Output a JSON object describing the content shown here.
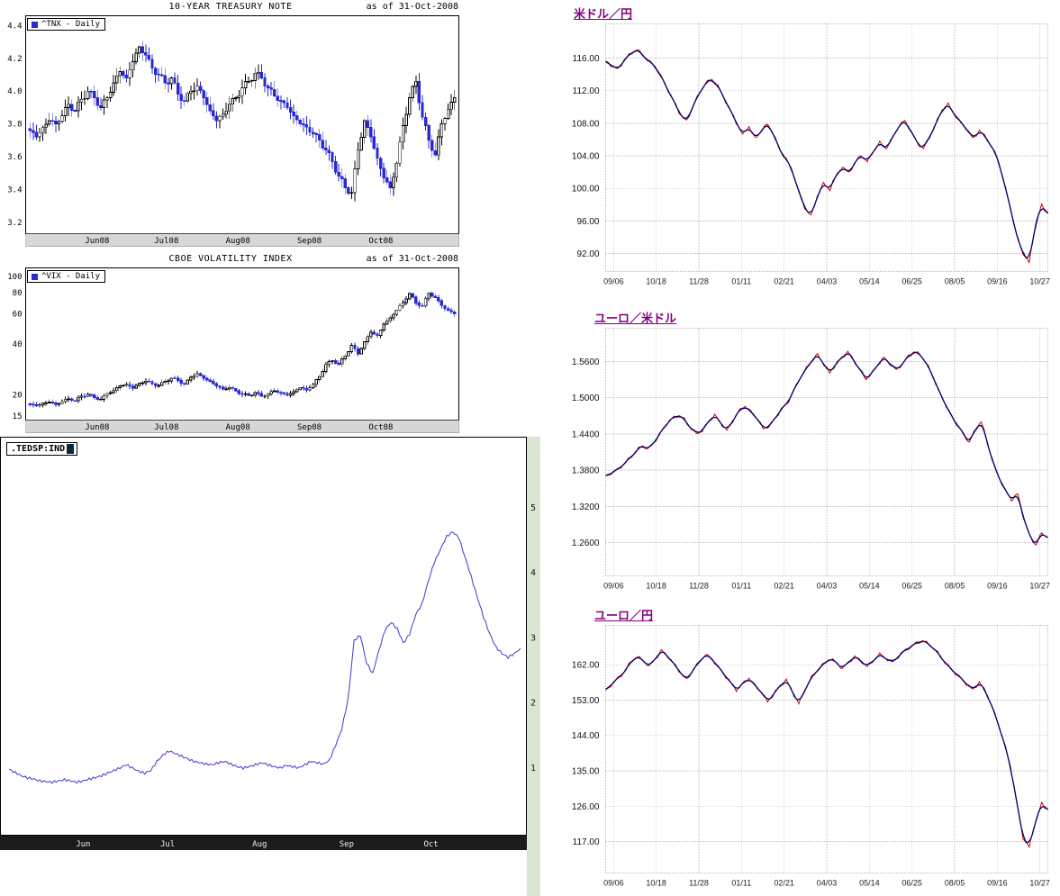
{
  "chart_data": [
    {
      "id": "tnx",
      "type": "candlestick",
      "title": "10-YEAR TREASURY NOTE",
      "as_of": "as of 31-Oct-2008",
      "legend": "^TNX - Daily",
      "scale": "linear",
      "up_color": "#ffffff",
      "down_color": "#2a2ad0",
      "ylim": [
        3.13,
        4.46
      ],
      "yticks": [
        "4.4",
        "4.2",
        "4.0",
        "3.8",
        "3.6",
        "3.4",
        "3.2"
      ],
      "ytick_vals": [
        4.4,
        4.2,
        4.0,
        3.8,
        3.6,
        3.4,
        3.2
      ],
      "xticks": [
        {
          "label": "Jun08",
          "f": 0.165
        },
        {
          "label": "Jul08",
          "f": 0.325
        },
        {
          "label": "Aug08",
          "f": 0.49
        },
        {
          "label": "Sep08",
          "f": 0.655
        },
        {
          "label": "Oct08",
          "f": 0.82
        }
      ],
      "wick": 0.045,
      "closes": [
        3.76,
        3.72,
        3.78,
        3.82,
        3.8,
        3.85,
        3.92,
        3.88,
        3.95,
        4.0,
        3.96,
        3.9,
        3.96,
        4.05,
        4.12,
        4.08,
        4.18,
        4.27,
        4.22,
        4.14,
        4.1,
        4.05,
        4.08,
        3.98,
        3.94,
        4.0,
        4.03,
        3.96,
        3.88,
        3.82,
        3.86,
        3.92,
        3.96,
        4.02,
        4.06,
        4.11,
        4.08,
        4.02,
        3.97,
        3.94,
        3.9,
        3.85,
        3.8,
        3.78,
        3.74,
        3.7,
        3.64,
        3.57,
        3.48,
        3.41,
        3.38,
        3.64,
        3.82,
        3.72,
        3.59,
        3.47,
        3.41,
        3.56,
        3.79,
        3.96,
        4.06,
        3.84,
        3.7,
        3.61,
        3.8,
        3.89,
        3.96
      ]
    },
    {
      "id": "vix",
      "type": "candlestick",
      "title": "CBOE VOLATILITY INDEX",
      "as_of": "as of 31-Oct-2008",
      "legend": "^VIX - Daily",
      "scale": "log",
      "up_color": "#ffffff",
      "down_color": "#2a2ad0",
      "ylim": [
        14.2,
        112
      ],
      "yticks": [
        "100",
        "80",
        "60",
        "40",
        "20",
        "15"
      ],
      "ytick_vals": [
        100,
        80,
        60,
        40,
        20,
        15
      ],
      "xticks": [
        {
          "label": "Jun08",
          "f": 0.165
        },
        {
          "label": "Jul08",
          "f": 0.325
        },
        {
          "label": "Aug08",
          "f": 0.49
        },
        {
          "label": "Sep08",
          "f": 0.655
        },
        {
          "label": "Oct08",
          "f": 0.82
        }
      ],
      "wick": 0.035,
      "closes": [
        17.6,
        17.2,
        17.9,
        18.1,
        17.6,
        18.3,
        19.0,
        18.5,
        19.6,
        20.1,
        19.3,
        18.8,
        20.4,
        21.2,
        22.6,
        23.1,
        21.9,
        23.4,
        24.1,
        23.3,
        22.7,
        24.0,
        25.1,
        24.3,
        23.1,
        25.4,
        26.6,
        25.1,
        24.0,
        22.6,
        21.6,
        22.1,
        21.1,
        20.1,
        19.8,
        20.6,
        19.6,
        20.3,
        21.1,
        20.6,
        19.9,
        20.9,
        22.1,
        21.4,
        23.1,
        25.6,
        30.2,
        31.8,
        30.4,
        33.9,
        39.2,
        34.8,
        41.1,
        46.7,
        44.8,
        52.1,
        56.8,
        63.2,
        69.9,
        79.1,
        69.6,
        66.8,
        79.8,
        74.9,
        67.2,
        62.8,
        59.9
      ]
    },
    {
      "id": "tedspread",
      "type": "line",
      "symbol_label": ".TEDSP:IND",
      "line_color": "#3a3ad6",
      "ylim": [
        0,
        5.9
      ],
      "yticks": [
        "5",
        "4",
        "3",
        "2",
        "1"
      ],
      "ytick_vals": [
        5,
        4,
        3,
        2,
        1
      ],
      "xticks": [
        {
          "label": "Jun",
          "f": 0.145
        },
        {
          "label": "Jul",
          "f": 0.31
        },
        {
          "label": "Aug",
          "f": 0.49
        },
        {
          "label": "Sep",
          "f": 0.66
        },
        {
          "label": "Oct",
          "f": 0.825
        }
      ],
      "values": [
        0.98,
        0.93,
        0.88,
        0.85,
        0.83,
        0.8,
        0.79,
        0.78,
        0.8,
        0.82,
        0.8,
        0.78,
        0.8,
        0.83,
        0.85,
        0.88,
        0.92,
        0.96,
        1.0,
        1.05,
        1.0,
        0.95,
        0.92,
        0.96,
        1.1,
        1.2,
        1.26,
        1.22,
        1.18,
        1.14,
        1.1,
        1.08,
        1.06,
        1.05,
        1.08,
        1.1,
        1.06,
        1.02,
        1.0,
        1.02,
        1.05,
        1.08,
        1.05,
        1.02,
        1.0,
        1.04,
        1.02,
        1.0,
        1.05,
        1.1,
        1.08,
        1.06,
        1.12,
        1.35,
        1.6,
        2.05,
        2.96,
        3.04,
        2.62,
        2.45,
        2.8,
        3.12,
        3.24,
        3.14,
        2.92,
        3.06,
        3.36,
        3.52,
        3.86,
        4.16,
        4.36,
        4.56,
        4.63,
        4.54,
        4.24,
        3.94,
        3.62,
        3.32,
        3.06,
        2.86,
        2.76,
        2.7,
        2.76,
        2.84
      ]
    },
    {
      "id": "usdjpy",
      "type": "line",
      "title": "米ドル／円",
      "title_color": "#800080",
      "series_colors": {
        "price": "#d40000",
        "average": "#000070"
      },
      "ylim": [
        89.8,
        120.2
      ],
      "yticks": [
        "116.00",
        "112.00",
        "108.00",
        "104.00",
        "100.00",
        "96.00",
        "92.00"
      ],
      "ytick_vals": [
        116,
        112,
        108,
        104,
        100,
        96,
        92
      ],
      "xticks": [
        "09/06",
        "10/18",
        "11/28",
        "01/11",
        "02/21",
        "04/03",
        "05/14",
        "06/25",
        "08/05",
        "09/16",
        "10/27"
      ],
      "values": [
        115.6,
        115.1,
        114.6,
        115.8,
        116.5,
        117.1,
        116.3,
        115.6,
        114.9,
        113.6,
        112.1,
        110.6,
        109.1,
        108.2,
        110.1,
        111.6,
        112.9,
        113.4,
        112.6,
        111.1,
        109.6,
        108.1,
        106.6,
        107.6,
        106.1,
        107.1,
        107.9,
        106.6,
        104.6,
        103.6,
        102.1,
        99.6,
        97.6,
        96.6,
        99.1,
        100.6,
        99.9,
        101.6,
        102.6,
        101.9,
        103.1,
        104.1,
        103.3,
        104.6,
        105.6,
        104.9,
        106.1,
        107.6,
        108.3,
        107.1,
        105.6,
        104.9,
        106.3,
        107.9,
        109.6,
        110.3,
        109.1,
        108.1,
        107.3,
        106.1,
        107.1,
        106.3,
        105.1,
        103.6,
        100.6,
        97.6,
        94.1,
        92.1,
        90.9,
        95.6,
        97.9,
        96.9
      ]
    },
    {
      "id": "eurusd",
      "type": "line",
      "title": "ユーロ／米ドル",
      "title_color": "#800080",
      "series_colors": {
        "price": "#d40000",
        "average": "#000070"
      },
      "ylim": [
        1.205,
        1.615
      ],
      "yticks": [
        "1.5600",
        "1.5000",
        "1.4400",
        "1.3800",
        "1.3200",
        "1.2600"
      ],
      "ytick_vals": [
        1.56,
        1.5,
        1.44,
        1.38,
        1.32,
        1.26
      ],
      "xticks": [
        "09/06",
        "10/18",
        "11/28",
        "01/11",
        "02/21",
        "04/03",
        "05/14",
        "06/25",
        "08/05",
        "09/16",
        "10/27"
      ],
      "values": [
        1.37,
        1.376,
        1.381,
        1.39,
        1.4,
        1.411,
        1.421,
        1.415,
        1.426,
        1.441,
        1.456,
        1.466,
        1.471,
        1.464,
        1.45,
        1.441,
        1.446,
        1.461,
        1.471,
        1.458,
        1.446,
        1.462,
        1.478,
        1.486,
        1.476,
        1.466,
        1.449,
        1.453,
        1.466,
        1.481,
        1.491,
        1.511,
        1.531,
        1.546,
        1.561,
        1.571,
        1.556,
        1.541,
        1.556,
        1.566,
        1.576,
        1.561,
        1.546,
        1.531,
        1.541,
        1.556,
        1.566,
        1.556,
        1.546,
        1.556,
        1.569,
        1.576,
        1.571,
        1.556,
        1.536,
        1.511,
        1.491,
        1.471,
        1.456,
        1.441,
        1.426,
        1.446,
        1.461,
        1.426,
        1.391,
        1.366,
        1.346,
        1.331,
        1.341,
        1.301,
        1.271,
        1.256,
        1.276,
        1.268
      ]
    },
    {
      "id": "eurjpy",
      "type": "line",
      "title": "ユーロ／円",
      "title_color": "#800080",
      "series_colors": {
        "price": "#d40000",
        "average": "#000070"
      },
      "ylim": [
        109,
        172
      ],
      "yticks": [
        "162.00",
        "153.00",
        "144.00",
        "135.00",
        "126.00",
        "117.00"
      ],
      "ytick_vals": [
        162,
        153,
        144,
        135,
        126,
        117
      ],
      "xticks": [
        "09/06",
        "10/18",
        "11/28",
        "01/11",
        "02/21",
        "04/03",
        "05/14",
        "06/25",
        "08/05",
        "09/16",
        "10/27"
      ],
      "values": [
        155.5,
        157.1,
        158.6,
        160.1,
        162.6,
        164.1,
        163.1,
        161.6,
        163.6,
        165.6,
        164.1,
        162.1,
        160.1,
        158.1,
        160.6,
        162.6,
        164.6,
        163.6,
        161.6,
        159.6,
        157.6,
        155.6,
        157.1,
        158.6,
        156.6,
        155.1,
        152.6,
        154.6,
        156.6,
        158.1,
        155.1,
        152.1,
        155.6,
        158.6,
        160.6,
        162.1,
        163.6,
        162.6,
        161.1,
        162.6,
        164.1,
        162.9,
        161.6,
        163.1,
        164.6,
        163.6,
        162.6,
        164.1,
        165.6,
        166.6,
        167.6,
        168.1,
        167.1,
        165.6,
        163.6,
        161.6,
        160.1,
        158.6,
        157.1,
        155.6,
        157.6,
        155.1,
        151.6,
        147.1,
        142.1,
        136.1,
        127.1,
        118.1,
        115.6,
        122.1,
        126.6,
        125.1
      ]
    }
  ]
}
